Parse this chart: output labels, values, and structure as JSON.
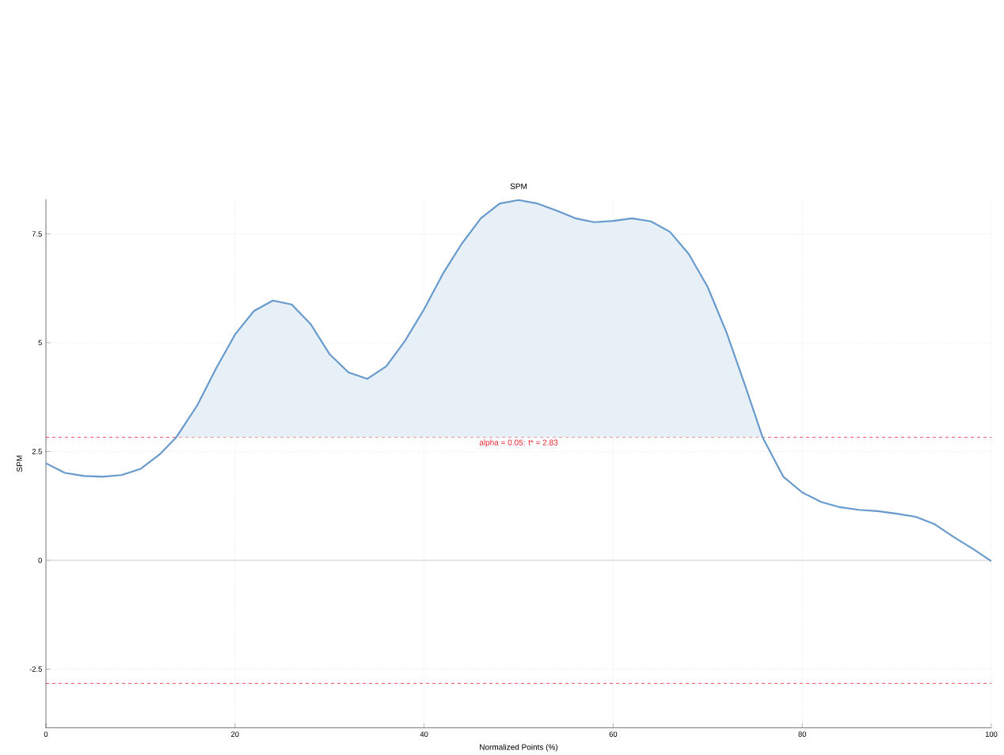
{
  "chart_data": {
    "type": "line",
    "title": "SPM",
    "xlabel": "Normalized Points (%)",
    "ylabel": "SPM",
    "xlim": [
      0,
      100
    ],
    "ylim": [
      -3.85,
      8.3
    ],
    "xticks": [
      0,
      20,
      40,
      60,
      80,
      100
    ],
    "yticks": [
      -2.5,
      0,
      2.5,
      5,
      7.5
    ],
    "grid": true,
    "x": [
      0,
      2,
      4,
      6,
      8,
      10,
      12,
      13.8,
      16,
      18,
      20,
      22,
      24,
      26,
      28,
      30,
      32,
      34,
      36,
      38,
      40,
      42,
      44,
      46,
      48,
      50,
      52,
      54,
      56,
      58,
      60,
      62,
      64,
      66,
      68,
      70,
      72,
      74,
      75.8,
      78,
      80,
      82,
      84,
      86,
      88,
      90,
      92,
      94,
      96,
      98,
      100
    ],
    "series": [
      {
        "color": "#6699cc",
        "values": [
          2.23,
          2.01,
          1.94,
          1.92,
          1.96,
          2.1,
          2.43,
          2.83,
          3.56,
          4.41,
          5.19,
          5.73,
          5.97,
          5.88,
          5.43,
          4.74,
          4.32,
          4.17,
          4.46,
          5.05,
          5.77,
          6.59,
          7.28,
          7.86,
          8.2,
          8.28,
          8.2,
          8.04,
          7.86,
          7.77,
          7.8,
          7.86,
          7.79,
          7.55,
          7.04,
          6.28,
          5.23,
          3.99,
          2.83,
          1.92,
          1.56,
          1.34,
          1.22,
          1.16,
          1.13,
          1.07,
          1.0,
          0.83,
          0.54,
          0.27,
          -0.02
        ],
        "lower": [
          null,
          null,
          null,
          null,
          null,
          null,
          null,
          2.83,
          2.83,
          2.83,
          2.83,
          2.83,
          2.83,
          2.83,
          2.83,
          2.83,
          2.83,
          2.83,
          2.83,
          2.83,
          2.83,
          2.83,
          2.83,
          2.83,
          2.83,
          2.83,
          2.83,
          2.83,
          2.83,
          2.83,
          2.83,
          2.83,
          2.83,
          2.83,
          2.83,
          2.83,
          2.83,
          2.83,
          2.83,
          null,
          null,
          null,
          null,
          null,
          null,
          null,
          null,
          null,
          null,
          null,
          null
        ],
        "upper": [
          null,
          null,
          null,
          null,
          null,
          null,
          null,
          2.83,
          3.56,
          4.41,
          5.19,
          5.73,
          5.97,
          5.88,
          5.43,
          4.74,
          4.32,
          4.17,
          4.46,
          5.05,
          5.77,
          6.59,
          7.28,
          7.86,
          8.2,
          8.28,
          8.2,
          8.04,
          7.86,
          7.77,
          7.8,
          7.86,
          7.79,
          7.55,
          7.04,
          6.28,
          5.23,
          3.99,
          2.83,
          null,
          null,
          null,
          null,
          null,
          null,
          null,
          null,
          null,
          null,
          null,
          null
        ]
      }
    ],
    "ref_lines": [
      {
        "axis": "y",
        "value": 2.83,
        "label": "alpha = 0.05: t* = 2.83",
        "color": "#e8202a",
        "line_style": "dashed"
      },
      {
        "axis": "y",
        "value": -2.83,
        "color": "#e8202a",
        "line_style": "dashed"
      },
      {
        "axis": "y",
        "value": 0,
        "color": "#c8c8c8",
        "line_style": "solid"
      }
    ]
  }
}
